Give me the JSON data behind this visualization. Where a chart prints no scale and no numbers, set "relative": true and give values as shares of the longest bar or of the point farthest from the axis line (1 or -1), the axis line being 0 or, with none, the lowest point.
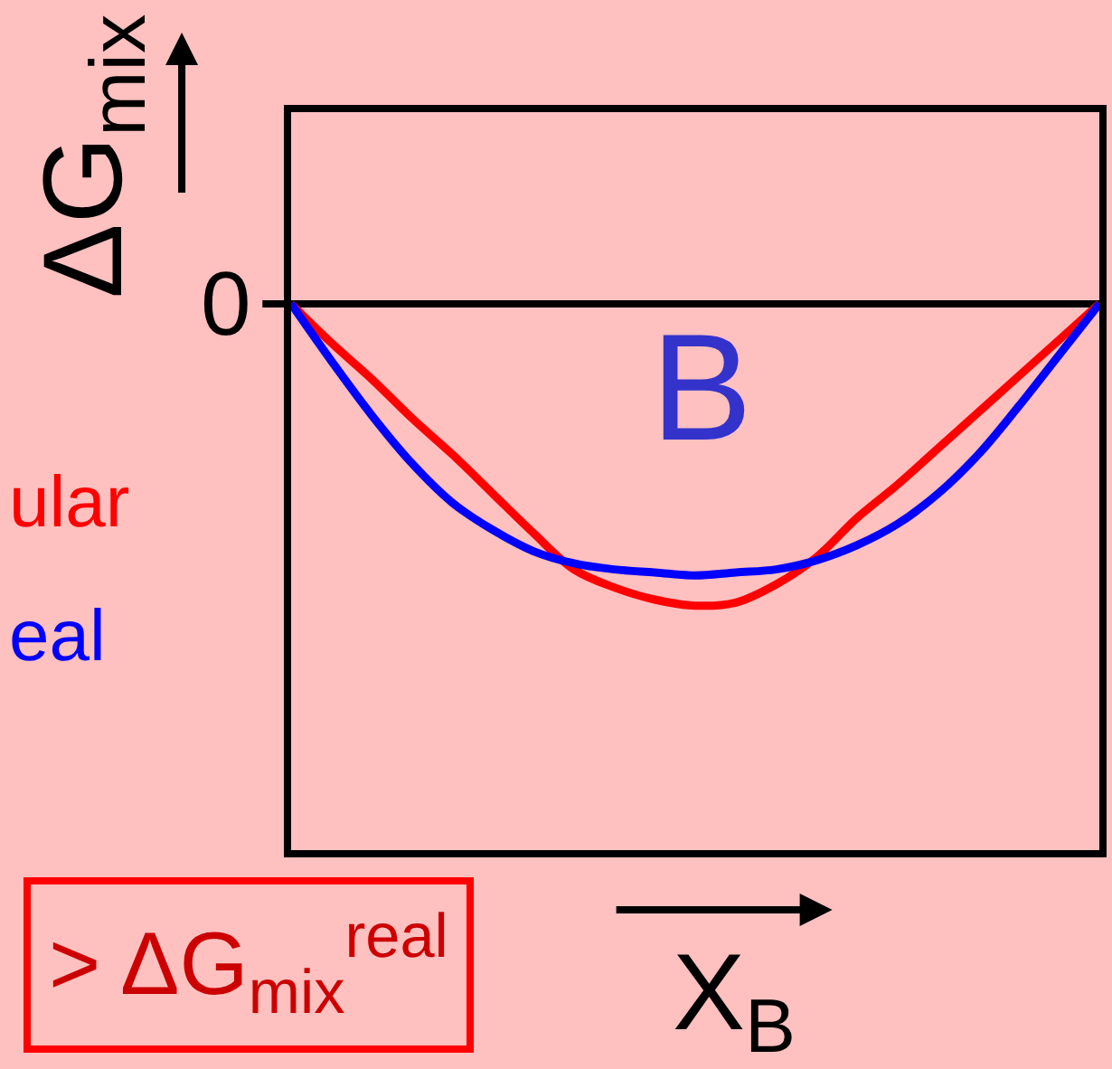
{
  "chart_data": {
    "type": "line",
    "relative": true,
    "categories": [
      null,
      null,
      null,
      null,
      null,
      null,
      null,
      null,
      null,
      null,
      null,
      null,
      null,
      null,
      null,
      null,
      null,
      null,
      null,
      null,
      null
    ],
    "xlabel": "X$_{B}$",
    "ylabel": "ΔG$_{mix}$",
    "series": [
      {
        "name": "ular",
        "color": "#ff0000",
        "values": [
          0,
          -0.13,
          -0.25,
          -0.38,
          -0.5,
          -0.63,
          -0.76,
          -0.88,
          -0.94,
          -0.98,
          -1,
          -0.99,
          -0.93,
          -0.84,
          -0.71,
          -0.6,
          -0.48,
          -0.36,
          -0.24,
          -0.12,
          0
        ]
      },
      {
        "name": "eal",
        "color": "#0000ff",
        "values": [
          0,
          -0.19,
          -0.37,
          -0.53,
          -0.66,
          -0.75,
          -0.82,
          -0.86,
          -0.88,
          -0.89,
          -0.9,
          -0.89,
          -0.88,
          -0.85,
          -0.8,
          -0.73,
          -0.63,
          -0.5,
          -0.34,
          -0.17,
          0
        ]
      }
    ],
    "ref_lines": [
      {
        "axis": "y",
        "value": 0,
        "label": "0"
      }
    ],
    "annotations": [
      "B",
      "> ΔG$_{mix}$$^{real}$"
    ],
    "legend": false,
    "line_style": "solid"
  }
}
